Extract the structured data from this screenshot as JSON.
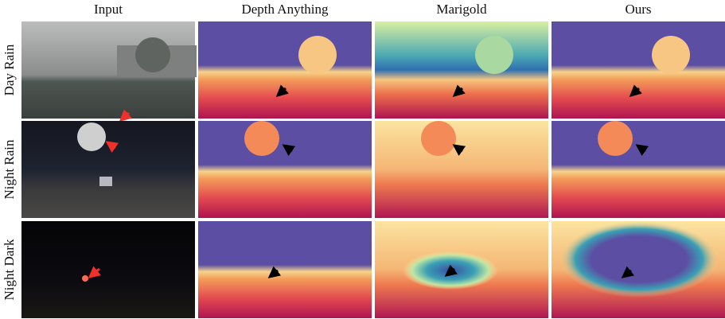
{
  "header": {
    "columns": [
      "Input",
      "Depth Anything",
      "Marigold",
      "Ours"
    ]
  },
  "rows": [
    "Day Rain",
    "Night Rain",
    "Night Dark"
  ]
}
